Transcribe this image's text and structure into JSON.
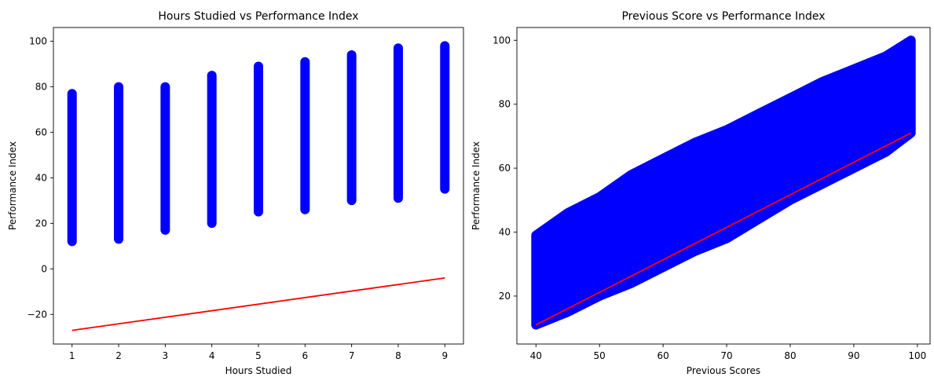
{
  "chart_data": [
    {
      "type": "scatter",
      "title": "Hours Studied vs Performance Index",
      "xlabel": "Hours Studied",
      "ylabel": "Performance Index",
      "xlim": [
        0.6,
        9.4
      ],
      "ylim": [
        -33,
        106
      ],
      "xticks": [
        1,
        2,
        3,
        4,
        5,
        6,
        7,
        8,
        9
      ],
      "yticks": [
        -20,
        0,
        20,
        40,
        60,
        80,
        100
      ],
      "ytick_labels": [
        "−20",
        "0",
        "20",
        "40",
        "60",
        "80",
        "100"
      ],
      "grid": false,
      "legend": "none",
      "point_color": "#0000ff",
      "line_color": "#ff0000",
      "series": [
        {
          "kind": "points",
          "ranges": [
            {
              "x": 1,
              "ymin": 10,
              "ymax": 79
            },
            {
              "x": 2,
              "ymin": 11,
              "ymax": 82
            },
            {
              "x": 3,
              "ymin": 15,
              "ymax": 82
            },
            {
              "x": 4,
              "ymin": 18,
              "ymax": 87
            },
            {
              "x": 5,
              "ymin": 23,
              "ymax": 91
            },
            {
              "x": 6,
              "ymin": 24,
              "ymax": 93
            },
            {
              "x": 7,
              "ymin": 28,
              "ymax": 96
            },
            {
              "x": 8,
              "ymin": 29,
              "ymax": 99
            },
            {
              "x": 9,
              "ymin": 33,
              "ymax": 100
            }
          ]
        },
        {
          "kind": "line",
          "x": [
            1,
            9
          ],
          "y": [
            -27,
            -4
          ]
        }
      ]
    },
    {
      "type": "scatter",
      "title": "Previous Score vs Performance Index",
      "xlabel": "Previous Scores",
      "ylabel": "Performance Index",
      "xlim": [
        37,
        102
      ],
      "ylim": [
        5,
        104
      ],
      "xticks": [
        40,
        50,
        60,
        70,
        80,
        90,
        100
      ],
      "yticks": [
        20,
        40,
        60,
        80,
        100
      ],
      "grid": false,
      "legend": "none",
      "point_color": "#0000ff",
      "line_color": "#ff0000",
      "series": [
        {
          "kind": "band",
          "x": [
            40,
            45,
            50,
            55,
            60,
            65,
            70,
            75,
            80,
            85,
            90,
            95,
            99
          ],
          "upper": [
            39,
            46,
            51,
            58,
            63,
            68,
            72,
            77,
            82,
            87,
            91,
            95,
            100
          ],
          "lower": [
            11,
            15,
            20,
            24,
            29,
            34,
            38,
            44,
            50,
            55,
            60,
            65,
            71
          ]
        },
        {
          "kind": "line",
          "x": [
            40,
            99
          ],
          "y": [
            11,
            71
          ]
        }
      ]
    }
  ]
}
